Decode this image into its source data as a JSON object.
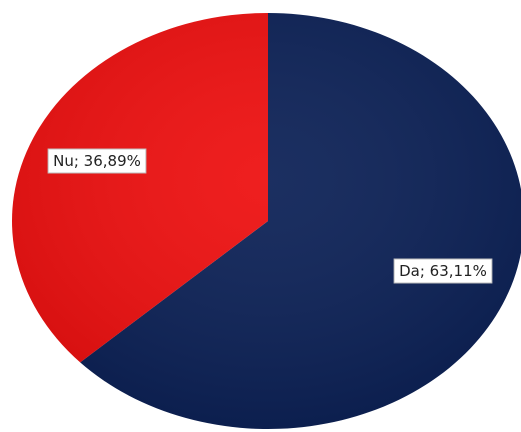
{
  "chart_data": {
    "type": "pie",
    "title": "",
    "slices": [
      {
        "category": "Da",
        "value": 63.11,
        "label": "Da; 63,11%",
        "color": "#0d2257"
      },
      {
        "category": "Nu",
        "value": 36.89,
        "label": "Nu; 36,89%",
        "color": "#ee1111"
      }
    ],
    "start_angle_deg": 0,
    "direction": "clockwise",
    "legend": "none"
  }
}
